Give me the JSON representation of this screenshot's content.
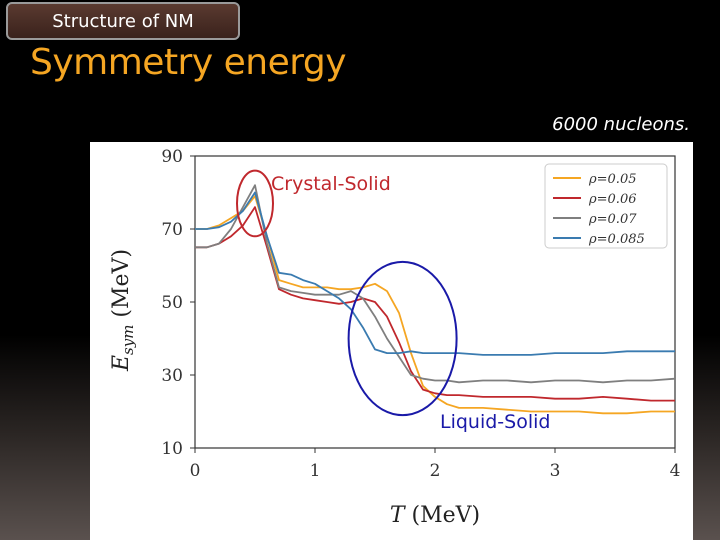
{
  "header": {
    "tab_label": "Structure of NM",
    "title": "Symmetry energy",
    "note": "6000 nucleons."
  },
  "chart_data": {
    "type": "line",
    "xlabel": "T (MeV)",
    "ylabel": "E_sym (MeV)",
    "xlim": [
      0,
      4
    ],
    "ylim": [
      10,
      90
    ],
    "xticks": [
      0,
      1,
      2,
      3,
      4
    ],
    "yticks": [
      10,
      30,
      50,
      70,
      90
    ],
    "grid": false,
    "legend_position": "top-right",
    "series": [
      {
        "name": "ρ=0.05",
        "color": "#f5a623",
        "x": [
          0,
          0.1,
          0.2,
          0.3,
          0.4,
          0.5,
          0.6,
          0.7,
          0.8,
          0.9,
          1.0,
          1.1,
          1.2,
          1.3,
          1.4,
          1.5,
          1.6,
          1.7,
          1.8,
          1.9,
          2.0,
          2.1,
          2.2,
          2.4,
          2.6,
          2.8,
          3.0,
          3.2,
          3.4,
          3.6,
          3.8,
          4.0
        ],
        "y": [
          70,
          70,
          71,
          73,
          75,
          79,
          68,
          56,
          55,
          54,
          54,
          54,
          53.5,
          53.5,
          54,
          55,
          53,
          47,
          36,
          27,
          24,
          22,
          21,
          21,
          20.5,
          20,
          20,
          20,
          19.5,
          19.5,
          20,
          20
        ]
      },
      {
        "name": "ρ=0.06",
        "color": "#c0282d",
        "x": [
          0,
          0.1,
          0.2,
          0.3,
          0.4,
          0.5,
          0.6,
          0.7,
          0.8,
          0.9,
          1.0,
          1.1,
          1.2,
          1.3,
          1.4,
          1.5,
          1.6,
          1.7,
          1.8,
          1.9,
          2.0,
          2.1,
          2.2,
          2.4,
          2.6,
          2.8,
          3.0,
          3.2,
          3.4,
          3.6,
          3.8,
          4.0
        ],
        "y": [
          65,
          65,
          66,
          68,
          71,
          76,
          65,
          53.5,
          52,
          51,
          50.5,
          50,
          49.5,
          50,
          51,
          50,
          46,
          39,
          31,
          26,
          25,
          24.5,
          24.5,
          24,
          24,
          24,
          23.5,
          23.5,
          24,
          23.5,
          23,
          23
        ]
      },
      {
        "name": "ρ=0.07",
        "color": "#7f7f7f",
        "x": [
          0,
          0.1,
          0.2,
          0.3,
          0.4,
          0.5,
          0.6,
          0.7,
          0.8,
          0.9,
          1.0,
          1.1,
          1.2,
          1.3,
          1.4,
          1.5,
          1.6,
          1.7,
          1.8,
          1.9,
          2.0,
          2.1,
          2.2,
          2.4,
          2.6,
          2.8,
          3.0,
          3.2,
          3.4,
          3.6,
          3.8,
          4.0
        ],
        "y": [
          65,
          65,
          66,
          70,
          76,
          82,
          66,
          54,
          53,
          52.5,
          52,
          52,
          52,
          53,
          51,
          46,
          40,
          35,
          30,
          29,
          28.5,
          28.5,
          28,
          28.5,
          28.5,
          28,
          28.5,
          28.5,
          28,
          28.5,
          28.5,
          29
        ]
      },
      {
        "name": "ρ=0.085",
        "color": "#3a7bb0",
        "x": [
          0,
          0.1,
          0.2,
          0.3,
          0.4,
          0.5,
          0.6,
          0.7,
          0.8,
          0.9,
          1.0,
          1.1,
          1.2,
          1.3,
          1.4,
          1.5,
          1.6,
          1.7,
          1.8,
          1.9,
          2.0,
          2.1,
          2.2,
          2.4,
          2.6,
          2.8,
          3.0,
          3.2,
          3.4,
          3.6,
          3.8,
          4.0
        ],
        "y": [
          70,
          70,
          70.5,
          72,
          75,
          80,
          68,
          58,
          57.5,
          56,
          55,
          53,
          51,
          48,
          43,
          37,
          36,
          36,
          36.5,
          36,
          36,
          36,
          36,
          35.5,
          35.5,
          35.5,
          36,
          36,
          36,
          36.5,
          36.5,
          36.5
        ]
      }
    ],
    "annotations": [
      {
        "text": "Crystal-Solid",
        "color": "#c0282d",
        "x": 0.5,
        "y": 77,
        "rx": 0.15,
        "ry": 9
      },
      {
        "text": "Liquid-Solid",
        "color": "#1a1aa8",
        "x": 1.73,
        "y": 40,
        "rx": 0.45,
        "ry": 21
      }
    ]
  }
}
